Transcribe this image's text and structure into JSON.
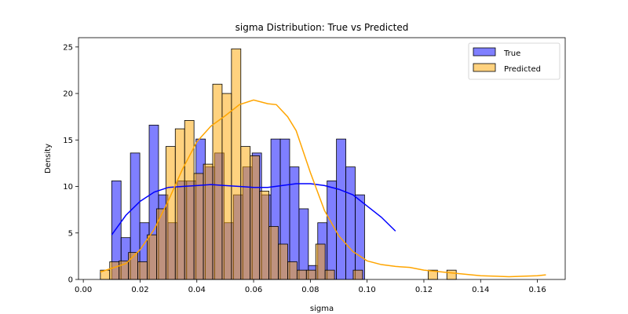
{
  "chart_data": {
    "type": "bar",
    "title": "sigma Distribution: True vs Predicted",
    "xlabel": "sigma",
    "ylabel": "Density",
    "xlim": [
      -0.0017,
      0.1698
    ],
    "ylim": [
      0,
      26
    ],
    "xticks": [
      0.0,
      0.02,
      0.04,
      0.06,
      0.08,
      0.1,
      0.12,
      0.14,
      0.16
    ],
    "xtick_labels": [
      "0.00",
      "0.02",
      "0.04",
      "0.06",
      "0.08",
      "0.10",
      "0.12",
      "0.14",
      "0.16"
    ],
    "yticks": [
      0,
      5,
      10,
      15,
      20,
      25
    ],
    "ytick_labels": [
      "0",
      "5",
      "10",
      "15",
      "20",
      "25"
    ],
    "grid": false,
    "legend_position": "top-right",
    "series": [
      {
        "name": "True",
        "kind": "histogram",
        "color": "#0000ff",
        "bin_start": 0.01,
        "bin_width": 0.0033,
        "values": [
          10.6,
          4.5,
          13.6,
          6.1,
          16.6,
          9.1,
          6.1,
          10.6,
          10.6,
          15.1,
          12.1,
          13.6,
          6.1,
          9.1,
          12.1,
          13.6,
          9.1,
          15.1,
          15.1,
          12.1,
          7.6,
          1.5,
          6.1,
          10.6,
          15.1,
          12.1,
          9.1
        ],
        "kde": {
          "x": [
            0.01,
            0.015,
            0.02,
            0.025,
            0.03,
            0.035,
            0.04,
            0.045,
            0.05,
            0.055,
            0.06,
            0.065,
            0.07,
            0.075,
            0.08,
            0.085,
            0.09,
            0.095,
            0.1,
            0.105,
            0.11
          ],
          "y": [
            4.8,
            6.9,
            8.4,
            9.4,
            9.9,
            10.0,
            10.1,
            10.2,
            10.1,
            10.0,
            9.9,
            9.9,
            10.1,
            10.3,
            10.3,
            10.1,
            9.7,
            9.1,
            7.9,
            6.7,
            5.2
          ]
        }
      },
      {
        "name": "Predicted",
        "kind": "histogram",
        "color": "#ffa500",
        "bin_start": 0.006,
        "bin_width": 0.0033,
        "values": [
          1.0,
          1.9,
          2.0,
          2.9,
          1.9,
          4.8,
          7.6,
          14.3,
          16.2,
          17.1,
          11.4,
          12.4,
          21.0,
          20.0,
          24.8,
          14.3,
          13.3,
          9.5,
          5.7,
          3.8,
          1.9,
          1.0,
          1.0,
          3.8,
          1.0,
          0,
          0,
          1.0,
          0,
          0,
          0,
          0,
          0,
          0,
          0,
          1.0,
          0,
          1.0
        ],
        "kde": {
          "x": [
            0.006,
            0.015,
            0.02,
            0.025,
            0.03,
            0.035,
            0.04,
            0.045,
            0.05,
            0.055,
            0.06,
            0.065,
            0.068,
            0.072,
            0.075,
            0.08,
            0.085,
            0.09,
            0.095,
            0.1,
            0.105,
            0.11,
            0.115,
            0.12,
            0.13,
            0.14,
            0.15,
            0.16,
            0.163
          ],
          "y": [
            0.8,
            1.7,
            3.2,
            5.4,
            8.5,
            11.9,
            14.8,
            16.5,
            17.6,
            18.8,
            19.3,
            18.9,
            18.8,
            17.5,
            16.0,
            11.5,
            7.4,
            4.7,
            3.0,
            2.0,
            1.6,
            1.4,
            1.3,
            1.0,
            0.7,
            0.4,
            0.3,
            0.4,
            0.5
          ]
        }
      }
    ]
  }
}
